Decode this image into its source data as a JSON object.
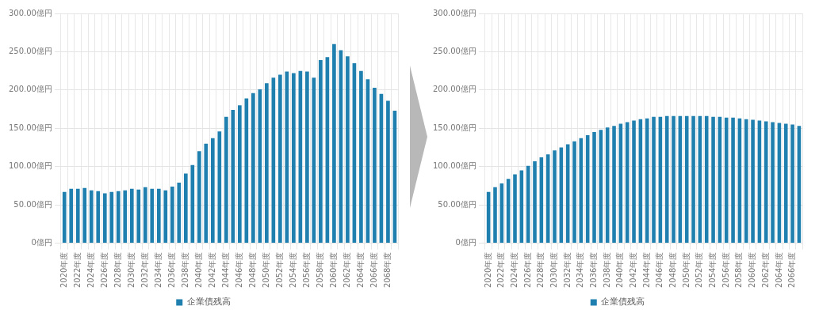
{
  "chart_data": [
    {
      "type": "bar",
      "categories": [
        "2020年度",
        null,
        "2022年度",
        null,
        "2024年度",
        null,
        "2026年度",
        null,
        "2028年度",
        null,
        "2030年度",
        null,
        "2032年度",
        null,
        "2034年度",
        null,
        "2036年度",
        null,
        "2038年度",
        null,
        "2040年度",
        null,
        "2042年度",
        null,
        "2044年度",
        null,
        "2046年度",
        null,
        "2048年度",
        null,
        "2050年度",
        null,
        "2052年度",
        null,
        "2054年度",
        null,
        "2056年度",
        null,
        "2058年度",
        null,
        "2060年度",
        null,
        "2062年度",
        null,
        "2064年度",
        null,
        "2066年度",
        null,
        "2068年度",
        null
      ],
      "series": [
        {
          "name": "企業債残高",
          "color": "#1f7fae",
          "values": [
            67,
            71,
            71,
            72,
            69,
            68,
            65,
            67,
            68,
            69,
            71,
            70,
            73,
            71,
            71,
            69,
            74,
            79,
            91,
            102,
            120,
            130,
            137,
            146,
            165,
            174,
            180,
            189,
            196,
            201,
            209,
            216,
            220,
            224,
            222,
            225,
            224,
            216,
            239,
            243,
            260,
            252,
            244,
            235,
            225,
            214,
            203,
            195,
            186,
            173
          ]
        }
      ],
      "ylim": [
        0,
        300
      ],
      "yticks": [
        {
          "value": 0,
          "label": "0億円"
        },
        {
          "value": 50,
          "label": "50.00億円"
        },
        {
          "value": 100,
          "label": "100.00億円"
        },
        {
          "value": 150,
          "label": "150.00億円"
        },
        {
          "value": 200,
          "label": "200.00億円"
        },
        {
          "value": 250,
          "label": "250.00億円"
        },
        {
          "value": 300,
          "label": "300.00億円"
        }
      ],
      "grid": true,
      "legend": "bottom"
    },
    {
      "type": "bar",
      "categories": [
        "2020年度",
        null,
        "2022年度",
        null,
        "2024年度",
        null,
        "2026年度",
        null,
        "2028年度",
        null,
        "2030年度",
        null,
        "2032年度",
        null,
        "2034年度",
        null,
        "2036年度",
        null,
        "2038年度",
        null,
        "2040年度",
        null,
        "2042年度",
        null,
        "2044年度",
        null,
        "2046年度",
        null,
        "2048年度",
        null,
        "2050年度",
        null,
        "2052年度",
        null,
        "2054年度",
        null,
        "2056年度",
        null,
        "2058年度",
        null,
        "2060年度",
        null,
        "2062年度",
        null,
        "2064年度",
        null,
        "2066年度",
        null
      ],
      "series": [
        {
          "name": "企業債残高",
          "color": "#1f7fae",
          "values": [
            67,
            73,
            78,
            84,
            90,
            95,
            101,
            107,
            112,
            116,
            121,
            125,
            129,
            133,
            137,
            141,
            145,
            148,
            151,
            153,
            156,
            158,
            160,
            162,
            163,
            165,
            165,
            166,
            166,
            166,
            166,
            166,
            166,
            166,
            165,
            165,
            164,
            164,
            163,
            162,
            161,
            160,
            159,
            158,
            157,
            156,
            155,
            153
          ]
        }
      ],
      "ylim": [
        0,
        300
      ],
      "yticks": [
        {
          "value": 0,
          "label": "0億円"
        },
        {
          "value": 50,
          "label": "50.00億円"
        },
        {
          "value": 100,
          "label": "100.00億円"
        },
        {
          "value": 150,
          "label": "150.00億円"
        },
        {
          "value": 200,
          "label": "200.00億円"
        },
        {
          "value": 250,
          "label": "250.00億円"
        },
        {
          "value": 300,
          "label": "300.00億円"
        }
      ],
      "grid": true,
      "legend": "bottom"
    }
  ]
}
